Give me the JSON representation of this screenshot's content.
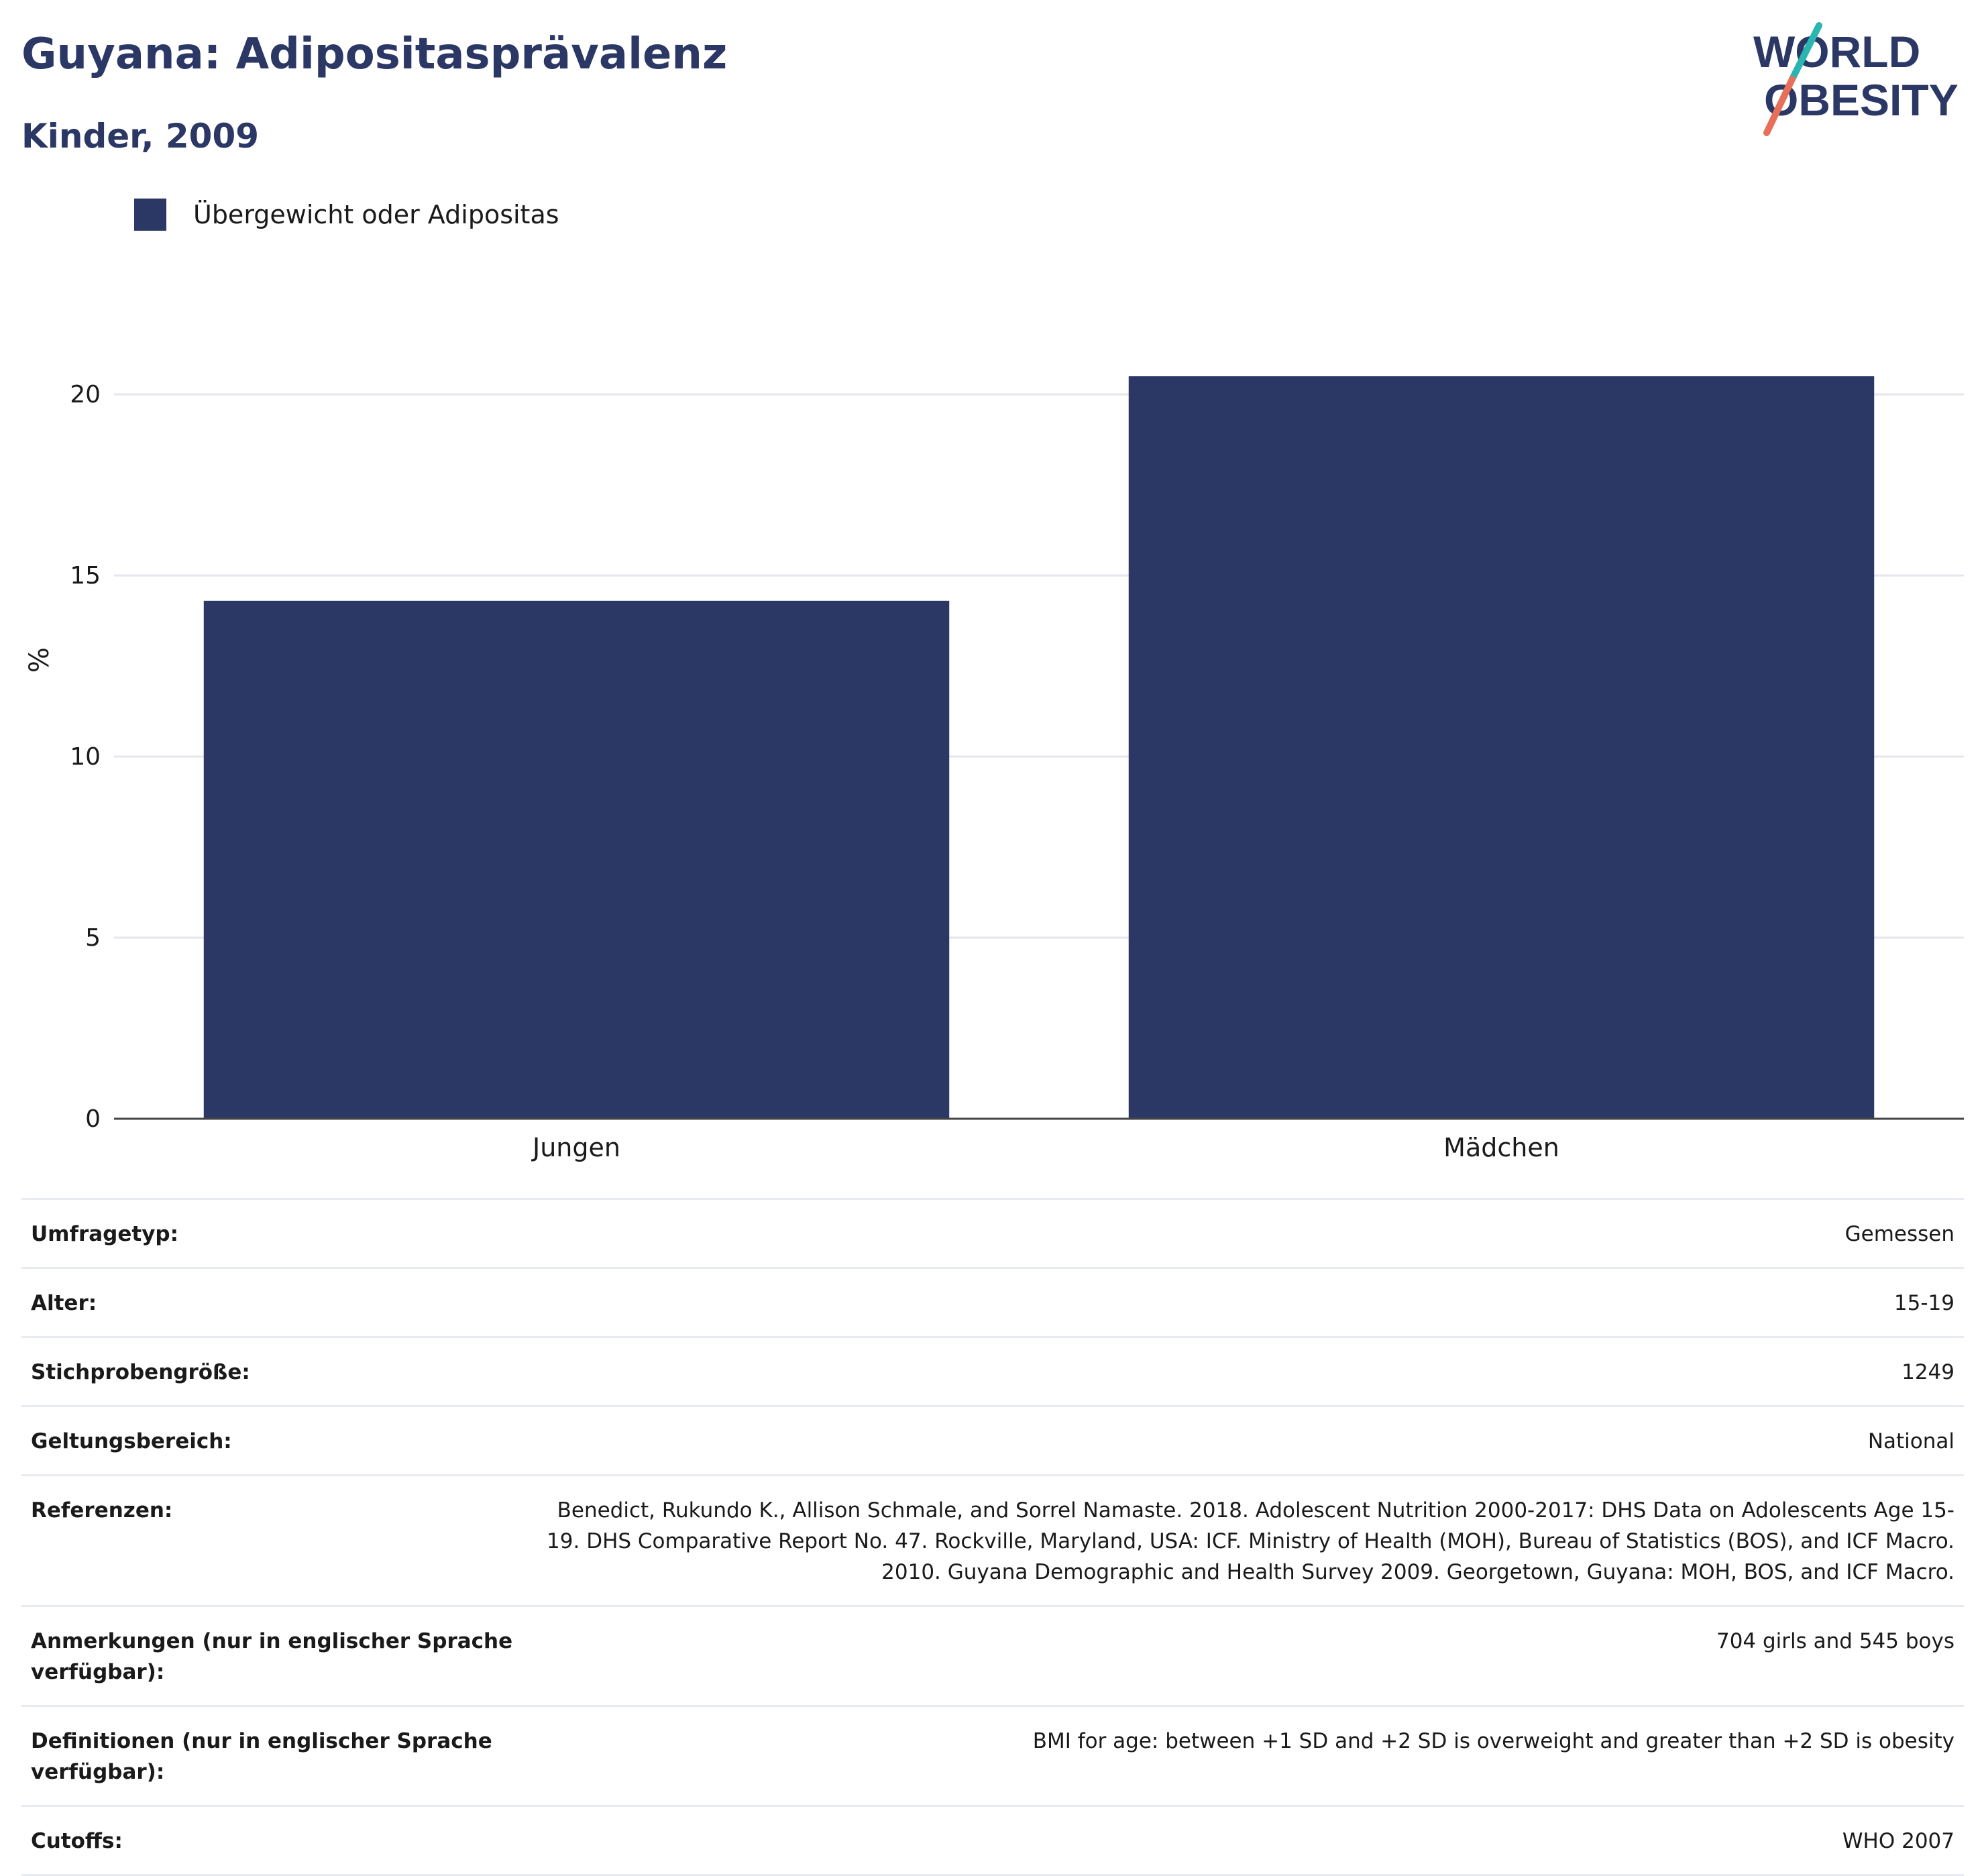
{
  "header": {
    "title": "Guyana: Adipositasprävalenz",
    "subtitle": "Kinder, 2009",
    "logo_line1": "WORLD",
    "logo_line2": "OBESITY"
  },
  "legend": {
    "label": "Übergewicht oder Adipositas",
    "color": "#2b3764"
  },
  "chart_data": {
    "type": "bar",
    "categories": [
      "Jungen",
      "Mädchen"
    ],
    "series": [
      {
        "name": "Übergewicht oder Adipositas",
        "values": [
          14.3,
          20.5
        ]
      }
    ],
    "ylabel": "%",
    "ylim": [
      0,
      22
    ],
    "yticks": [
      0,
      5,
      10,
      15,
      20
    ],
    "grid": true,
    "legend_position": "top-left",
    "bar_color": "#2b3764"
  },
  "meta": {
    "rows": [
      {
        "key": "Umfragetyp:",
        "value": "Gemessen"
      },
      {
        "key": "Alter:",
        "value": "15-19"
      },
      {
        "key": "Stichprobengröße:",
        "value": "1249"
      },
      {
        "key": "Geltungsbereich:",
        "value": "National"
      },
      {
        "key": "Referenzen:",
        "value": "Benedict, Rukundo K., Allison Schmale, and Sorrel Namaste. 2018. Adolescent Nutrition 2000-2017: DHS Data on Adolescents Age 15-19. DHS Comparative Report No. 47. Rockville, Maryland, USA: ICF. Ministry of Health (MOH), Bureau of Statistics (BOS), and ICF Macro. 2010. Guyana Demographic and Health Survey 2009. Georgetown, Guyana: MOH, BOS, and ICF Macro."
      },
      {
        "key": "Anmerkungen (nur in englischer Sprache verfügbar):",
        "value": "704 girls and 545 boys"
      },
      {
        "key": "Definitionen (nur in englischer Sprache verfügbar):",
        "value": "BMI for age: between +1 SD and +2 SD is overweight and greater than +2 SD is obesity"
      },
      {
        "key": "Cutoffs:",
        "value": "WHO 2007"
      }
    ]
  }
}
